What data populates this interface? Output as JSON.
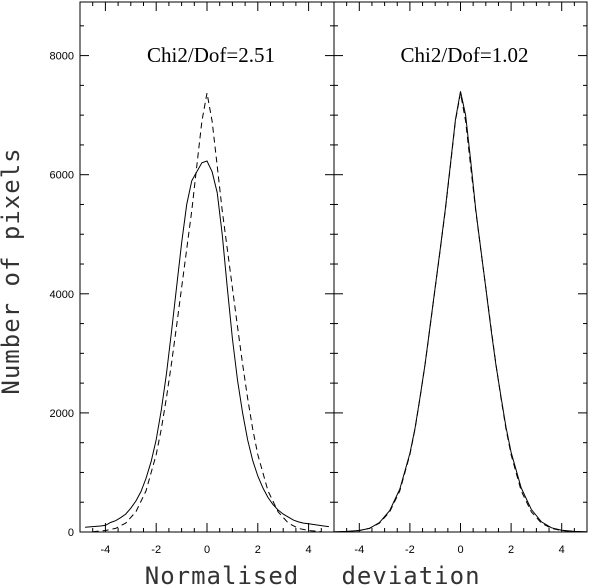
{
  "chart_data": {
    "type": "line",
    "ylabel": "Number of pixels",
    "xlabel_parts": [
      "Normalised",
      "deviation"
    ],
    "xlim": [
      -5.0,
      5.0
    ],
    "ylim": [
      0,
      8900
    ],
    "xticks": [
      -4,
      -2,
      0,
      2,
      4
    ],
    "yticks": [
      0,
      2000,
      4000,
      6000,
      8000
    ],
    "panels": [
      {
        "annotation": "Chi2/Dof=2.51",
        "series": [
          {
            "style": "solid",
            "x": [
              -4.8,
              -4.5,
              -4.2,
              -4.0,
              -3.8,
              -3.6,
              -3.4,
              -3.2,
              -3.0,
              -2.8,
              -2.6,
              -2.4,
              -2.2,
              -2.0,
              -1.8,
              -1.6,
              -1.4,
              -1.2,
              -1.0,
              -0.8,
              -0.6,
              -0.4,
              -0.2,
              0.0,
              0.2,
              0.4,
              0.6,
              0.8,
              1.0,
              1.2,
              1.4,
              1.6,
              1.8,
              2.0,
              2.2,
              2.4,
              2.6,
              2.8,
              3.0,
              3.2,
              3.4,
              3.6,
              3.8,
              4.0,
              4.3,
              4.6,
              4.8
            ],
            "y": [
              80,
              90,
              100,
              110,
              160,
              190,
              240,
              300,
              400,
              520,
              680,
              900,
              1180,
              1550,
              2050,
              2650,
              3350,
              4100,
              4850,
              5500,
              5900,
              6050,
              6200,
              6230,
              6050,
              5700,
              5000,
              4100,
              3250,
              2550,
              2000,
              1550,
              1200,
              940,
              740,
              580,
              460,
              370,
              300,
              250,
              200,
              170,
              150,
              140,
              120,
              100,
              90
            ]
          },
          {
            "style": "dashed",
            "x": [
              -4.5,
              -4.0,
              -3.6,
              -3.2,
              -2.8,
              -2.4,
              -2.0,
              -1.8,
              -1.6,
              -1.4,
              -1.2,
              -1.0,
              -0.8,
              -0.6,
              -0.4,
              -0.2,
              0.0,
              0.2,
              0.4,
              0.6,
              0.8,
              1.0,
              1.2,
              1.4,
              1.6,
              1.8,
              2.0,
              2.4,
              2.8,
              3.2,
              3.6,
              4.0,
              4.5
            ],
            "y": [
              5,
              25,
              60,
              150,
              340,
              690,
              1300,
              1730,
              2250,
              2820,
              3450,
              4100,
              4750,
              5400,
              6150,
              6900,
              7370,
              6900,
              6150,
              5400,
              4750,
              4100,
              3450,
              2820,
              2250,
              1730,
              1300,
              690,
              340,
              150,
              60,
              25,
              5
            ]
          }
        ]
      },
      {
        "annotation": "Chi2/Dof=1.02",
        "series": [
          {
            "style": "solid",
            "x": [
              -5.0,
              -4.5,
              -4.0,
              -3.6,
              -3.2,
              -2.8,
              -2.4,
              -2.0,
              -1.8,
              -1.6,
              -1.4,
              -1.2,
              -1.0,
              -0.8,
              -0.6,
              -0.4,
              -0.2,
              0.0,
              0.2,
              0.4,
              0.6,
              0.8,
              1.0,
              1.2,
              1.4,
              1.6,
              1.8,
              2.0,
              2.4,
              2.8,
              3.2,
              3.6,
              4.0,
              4.5,
              5.0
            ],
            "y": [
              5,
              10,
              25,
              60,
              160,
              360,
              720,
              1320,
              1740,
              2260,
              2820,
              3460,
              4110,
              4760,
              5420,
              6170,
              6920,
              7400,
              7000,
              6250,
              5420,
              4760,
              4100,
              3420,
              2810,
              2270,
              1760,
              1340,
              740,
              380,
              170,
              70,
              30,
              10,
              5
            ]
          },
          {
            "style": "dashed",
            "x": [
              -4.5,
              -4.0,
              -3.6,
              -3.2,
              -2.8,
              -2.4,
              -2.0,
              -1.8,
              -1.6,
              -1.4,
              -1.2,
              -1.0,
              -0.8,
              -0.6,
              -0.4,
              -0.2,
              0.0,
              0.2,
              0.4,
              0.6,
              0.8,
              1.0,
              1.2,
              1.4,
              1.6,
              1.8,
              2.0,
              2.4,
              2.8,
              3.2,
              3.6,
              4.0,
              4.5
            ],
            "y": [
              5,
              25,
              60,
              150,
              340,
              690,
              1300,
              1730,
              2250,
              2820,
              3450,
              4100,
              4750,
              5400,
              6150,
              6900,
              7370,
              6900,
              6150,
              5400,
              4750,
              4100,
              3450,
              2820,
              2250,
              1730,
              1300,
              690,
              340,
              150,
              60,
              25,
              5
            ]
          }
        ]
      }
    ]
  }
}
